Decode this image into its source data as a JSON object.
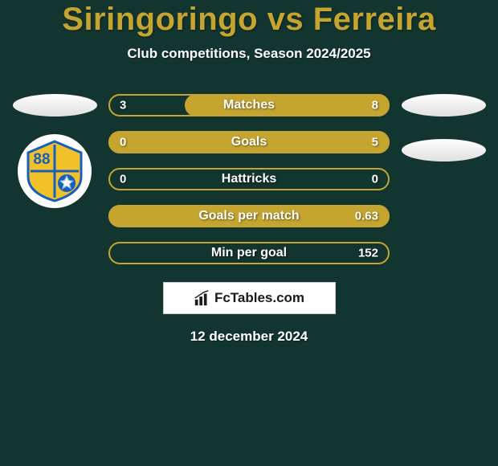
{
  "title": "Siringoringo vs Ferreira",
  "subtitle": "Club competitions, Season 2024/2025",
  "date": "12 december 2024",
  "brand": "FcTables.com",
  "colors": {
    "background": "#13352f",
    "accent": "#c5a52f",
    "text": "#ffffff",
    "badge_blue": "#1560bd",
    "badge_yellow": "#f2c029"
  },
  "badge_number": "88",
  "bars": [
    {
      "label": "Matches",
      "left": "3",
      "right": "8",
      "fill_pct": 73
    },
    {
      "label": "Goals",
      "left": "0",
      "right": "5",
      "fill_pct": 100
    },
    {
      "label": "Hattricks",
      "left": "0",
      "right": "0",
      "fill_pct": 0
    },
    {
      "label": "Goals per match",
      "left": "",
      "right": "0.63",
      "fill_pct": 100
    },
    {
      "label": "Min per goal",
      "left": "",
      "right": "152",
      "fill_pct": 0
    }
  ]
}
